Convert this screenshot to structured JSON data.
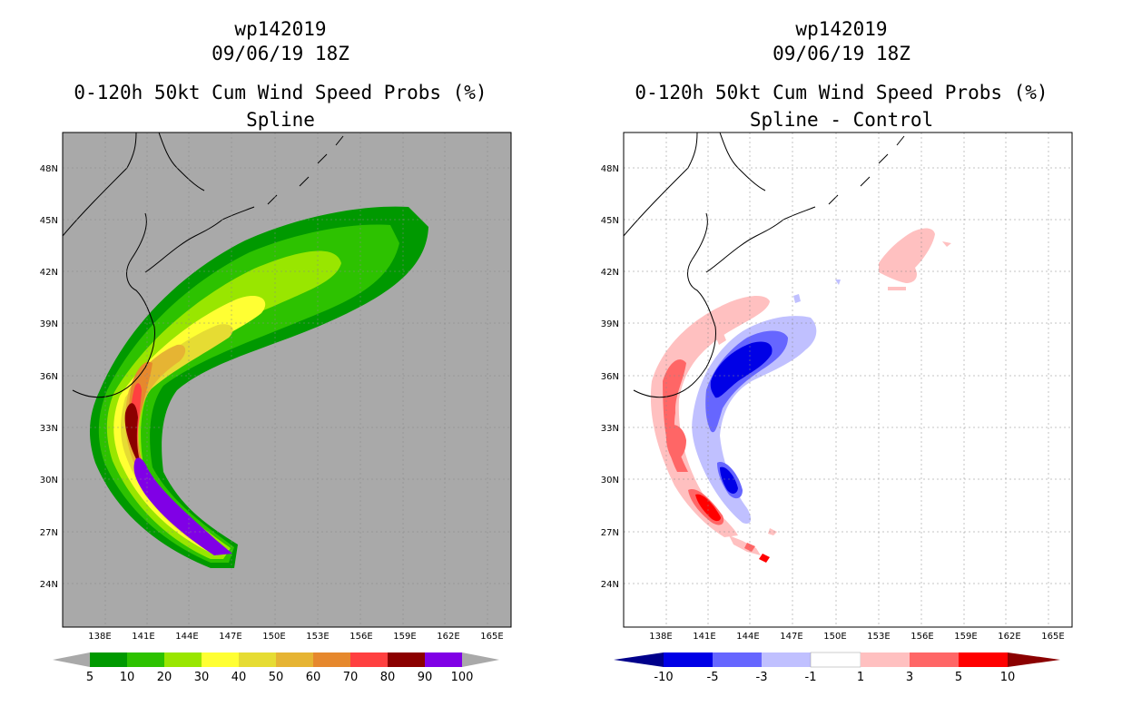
{
  "panels": {
    "left": {
      "storm_id": "wp142019",
      "date": "09/06/19 18Z",
      "product": "0-120h 50kt Cum Wind Speed Probs (%)",
      "subtitle": "Spline"
    },
    "right": {
      "storm_id": "wp142019",
      "date": "09/06/19 18Z",
      "product": "0-120h 50kt Cum Wind Speed Probs (%)",
      "subtitle": "Spline - Control"
    }
  },
  "axes": {
    "lon_labels": [
      "138E",
      "141E",
      "144E",
      "147E",
      "150E",
      "153E",
      "156E",
      "159E",
      "162E",
      "165E"
    ],
    "lat_labels": [
      "48N",
      "45N",
      "42N",
      "39N",
      "36N",
      "33N",
      "30N",
      "27N",
      "24N"
    ]
  },
  "colorbars": {
    "left": {
      "labels": [
        "5",
        "10",
        "20",
        "30",
        "40",
        "50",
        "60",
        "70",
        "80",
        "90",
        "100"
      ],
      "colors": [
        "#009900",
        "#2dc200",
        "#99e600",
        "#ffff33",
        "#e6dc33",
        "#e6b433",
        "#e6882d",
        "#ff4040",
        "#8b0000",
        "#8000e6"
      ],
      "under_color": "#a9a9a9",
      "over_color": "#a9a9a9"
    },
    "right": {
      "labels": [
        "-10",
        "-5",
        "-3",
        "-1",
        "1",
        "3",
        "5",
        "10"
      ],
      "colors": [
        "#0000e6",
        "#6666ff",
        "#c0c0ff",
        "#ffffff",
        "#ffc0c0",
        "#ff6666",
        "#ff0000"
      ],
      "under_color": "#00008b",
      "over_color": "#8b0000"
    }
  },
  "map_colors": {
    "left_background": "#a9a9a9",
    "right_background": "#ffffff"
  }
}
